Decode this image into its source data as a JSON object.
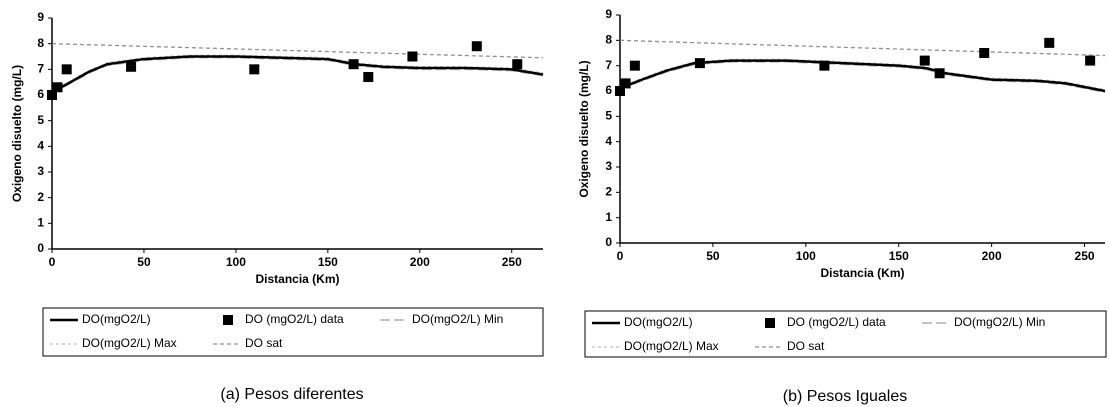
{
  "chart_data": [
    {
      "type": "line",
      "caption": "(a) Pesos diferentes",
      "xlabel": "Distancia (Km)",
      "ylabel": "Oxigeno disuelto (mg/L)",
      "xlim": [
        0,
        267
      ],
      "xticks": [
        0,
        50,
        100,
        150,
        200,
        250
      ],
      "ylim": [
        0,
        9
      ],
      "yticks": [
        0,
        1,
        2,
        3,
        4,
        5,
        6,
        7,
        8,
        9
      ],
      "grid": false,
      "series": [
        {
          "name": "DO(mgO2/L)",
          "color": "#000000",
          "mode": "line",
          "line_style": "solid",
          "x": [
            0,
            10,
            20,
            30,
            50,
            75,
            100,
            125,
            150,
            165,
            180,
            200,
            225,
            250,
            267
          ],
          "values": [
            6.1,
            6.5,
            6.9,
            7.2,
            7.4,
            7.5,
            7.5,
            7.45,
            7.4,
            7.2,
            7.1,
            7.05,
            7.05,
            7.0,
            6.8
          ]
        },
        {
          "name": "DO (mgO2/L) data",
          "color": "#000000",
          "mode": "markers",
          "marker": "square",
          "x": [
            0,
            3,
            8,
            43,
            110,
            164,
            172,
            196,
            231,
            253
          ],
          "values": [
            6.0,
            6.3,
            7.0,
            7.1,
            7.0,
            7.2,
            6.7,
            7.5,
            7.9,
            7.2
          ]
        },
        {
          "name": "DO(mgO2/L) Min",
          "color": "#b0b0b0",
          "mode": "line",
          "line_style": "dashed",
          "x": [
            0,
            10,
            20,
            30,
            50,
            75,
            100,
            125,
            150,
            165,
            180,
            200,
            225,
            250,
            267
          ],
          "values": [
            6.05,
            6.45,
            6.85,
            7.15,
            7.35,
            7.45,
            7.45,
            7.4,
            7.35,
            7.15,
            7.05,
            7.0,
            7.0,
            6.95,
            6.75
          ]
        },
        {
          "name": "DO(mgO2/L) Max",
          "color": "#c8c8c8",
          "mode": "line",
          "line_style": "dotted",
          "x": [
            0,
            10,
            20,
            30,
            50,
            75,
            100,
            125,
            150,
            165,
            180,
            200,
            225,
            250,
            267
          ],
          "values": [
            6.15,
            6.55,
            6.95,
            7.25,
            7.45,
            7.55,
            7.55,
            7.5,
            7.45,
            7.25,
            7.15,
            7.1,
            7.1,
            7.05,
            6.85
          ]
        },
        {
          "name": "DO sat",
          "color": "#909090",
          "mode": "line",
          "line_style": "short-dash",
          "x": [
            0,
            267
          ],
          "values": [
            8.0,
            7.45
          ]
        }
      ]
    },
    {
      "type": "line",
      "caption": "(b) Pesos Iguales",
      "xlabel": "Distancia (Km)",
      "ylabel": "Oxigeno disuelto (mg/L)",
      "xlim": [
        0,
        261
      ],
      "xticks": [
        0,
        50,
        100,
        150,
        200,
        250
      ],
      "ylim": [
        0,
        9
      ],
      "yticks": [
        0,
        1,
        2,
        3,
        4,
        5,
        6,
        7,
        8,
        9
      ],
      "grid": false,
      "series": [
        {
          "name": "DO(mgO2/L)",
          "color": "#000000",
          "mode": "line",
          "line_style": "solid",
          "x": [
            0,
            10,
            25,
            40,
            60,
            90,
            120,
            150,
            165,
            175,
            200,
            225,
            240,
            261
          ],
          "values": [
            6.1,
            6.4,
            6.8,
            7.1,
            7.2,
            7.2,
            7.1,
            7.0,
            6.9,
            6.7,
            6.45,
            6.4,
            6.3,
            6.0
          ]
        },
        {
          "name": "DO (mgO2/L) data",
          "color": "#000000",
          "mode": "markers",
          "marker": "square",
          "x": [
            0,
            3,
            8,
            43,
            110,
            164,
            172,
            196,
            231,
            253
          ],
          "values": [
            6.0,
            6.3,
            7.0,
            7.1,
            7.0,
            7.2,
            6.7,
            7.5,
            7.9,
            7.2
          ]
        },
        {
          "name": "DO(mgO2/L) Min",
          "color": "#b0b0b0",
          "mode": "line",
          "line_style": "dashed",
          "x": [
            0,
            10,
            25,
            40,
            60,
            90,
            120,
            150,
            165,
            175,
            200,
            225,
            240,
            261
          ],
          "values": [
            6.05,
            6.35,
            6.75,
            7.05,
            7.15,
            7.15,
            7.05,
            6.95,
            6.85,
            6.65,
            6.4,
            6.35,
            6.25,
            5.95
          ]
        },
        {
          "name": "DO(mgO2/L) Max",
          "color": "#c8c8c8",
          "mode": "line",
          "line_style": "dotted",
          "x": [
            0,
            10,
            25,
            40,
            60,
            90,
            120,
            150,
            165,
            175,
            200,
            225,
            240,
            261
          ],
          "values": [
            6.15,
            6.45,
            6.85,
            7.15,
            7.25,
            7.25,
            7.15,
            7.05,
            6.95,
            6.75,
            6.5,
            6.45,
            6.35,
            6.05
          ]
        },
        {
          "name": "DO sat",
          "color": "#909090",
          "mode": "line",
          "line_style": "short-dash",
          "x": [
            0,
            261
          ],
          "values": [
            8.0,
            7.4
          ]
        }
      ]
    }
  ]
}
